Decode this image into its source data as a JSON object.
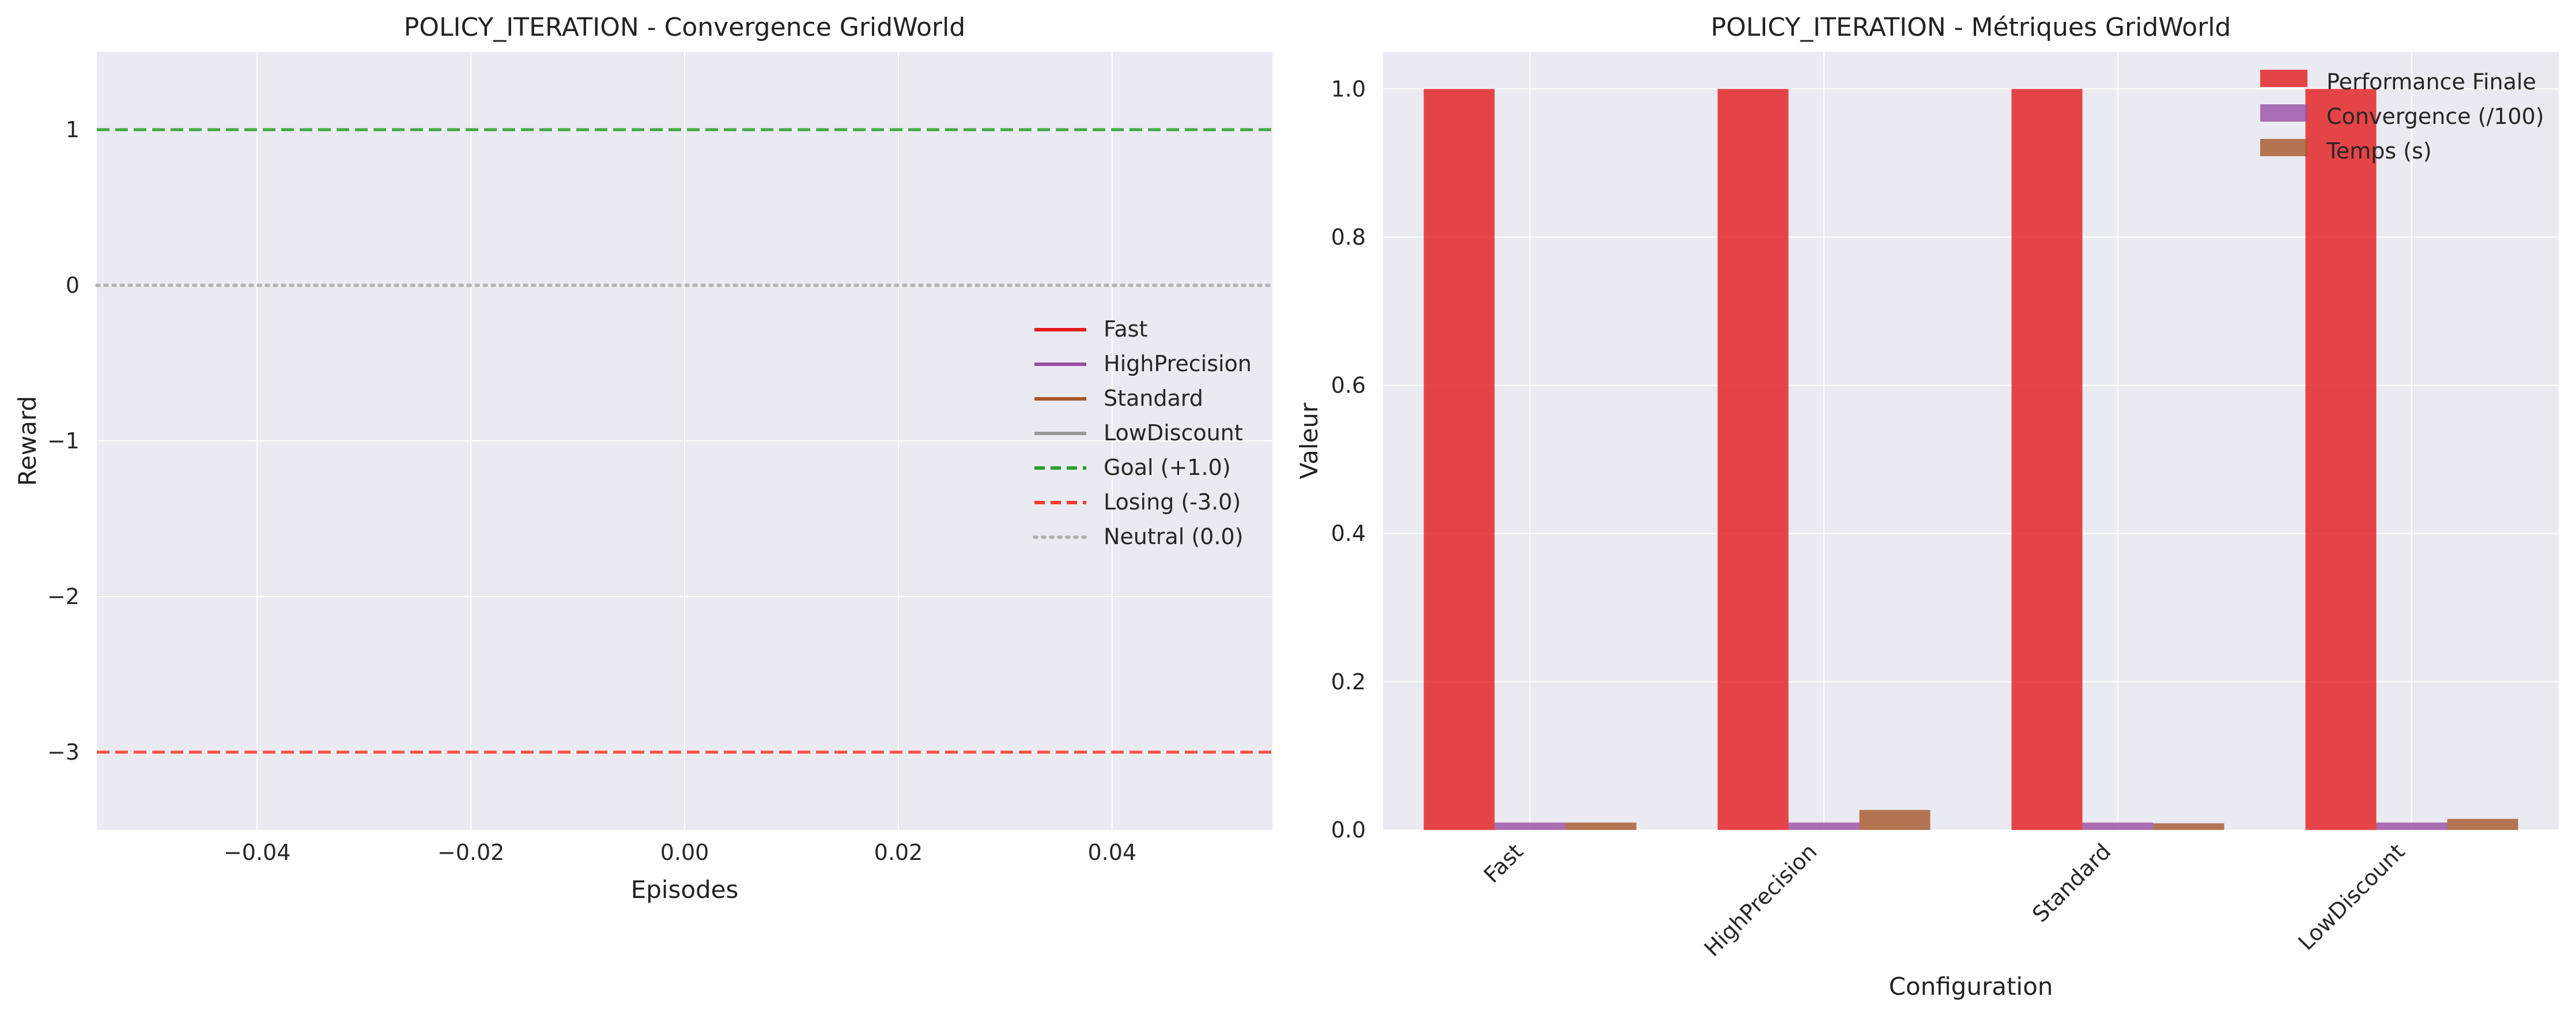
{
  "chart_data": [
    {
      "type": "line",
      "title": "POLICY_ITERATION - Convergence GridWorld",
      "xlabel": "Episodes",
      "ylabel": "Reward",
      "xlim": [
        -0.055,
        0.055
      ],
      "ylim": [
        -3.5,
        1.5
      ],
      "xticks": [
        -0.04,
        -0.02,
        0.0,
        0.02,
        0.04
      ],
      "xtick_labels": [
        "−0.04",
        "−0.02",
        "0.00",
        "0.02",
        "0.04"
      ],
      "yticks": [
        1,
        0,
        -1,
        -2,
        -3
      ],
      "ytick_labels": [
        "1",
        "0",
        "−1",
        "−2",
        "−3"
      ],
      "grid": true,
      "series": [
        {
          "name": "Fast",
          "color": "#e41a1c",
          "x": [],
          "y": []
        },
        {
          "name": "HighPrecision",
          "color": "#984ea3",
          "x": [],
          "y": []
        },
        {
          "name": "Standard",
          "color": "#a65628",
          "x": [],
          "y": []
        },
        {
          "name": "LowDiscount",
          "color": "#999999",
          "x": [],
          "y": []
        }
      ],
      "reference_lines": [
        {
          "name": "Goal (+1.0)",
          "y": 1.0,
          "color": "#2ca02c",
          "style": "dashed"
        },
        {
          "name": "Losing (-3.0)",
          "y": -3.0,
          "color": "#ff3b30",
          "style": "dashed"
        },
        {
          "name": "Neutral (0.0)",
          "y": 0.0,
          "color": "#b0b0b0",
          "style": "dotted"
        }
      ],
      "legend_position": "center-right"
    },
    {
      "type": "bar",
      "title": "POLICY_ITERATION - Métriques GridWorld",
      "xlabel": "Configuration",
      "ylabel": "Valeur",
      "ylim": [
        0,
        1.05
      ],
      "yticks": [
        0.0,
        0.2,
        0.4,
        0.6,
        0.8,
        1.0
      ],
      "ytick_labels": [
        "0.0",
        "0.2",
        "0.4",
        "0.6",
        "0.8",
        "1.0"
      ],
      "categories": [
        "Fast",
        "HighPrecision",
        "Standard",
        "LowDiscount"
      ],
      "grid": true,
      "series": [
        {
          "name": "Performance Finale",
          "color": "#e41a1c",
          "values": [
            1.0,
            1.0,
            1.0,
            1.0
          ]
        },
        {
          "name": "Convergence (/100)",
          "color": "#984ea3",
          "values": [
            0.01,
            0.01,
            0.01,
            0.01
          ]
        },
        {
          "name": "Temps (s)",
          "color": "#a65628",
          "values": [
            0.01,
            0.027,
            0.009,
            0.015
          ]
        }
      ],
      "legend_position": "top-right"
    }
  ]
}
